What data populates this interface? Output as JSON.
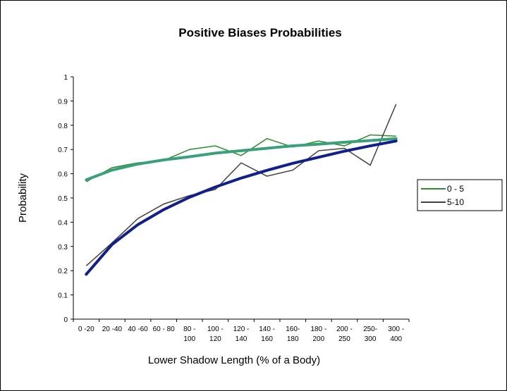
{
  "chart_data": {
    "type": "line",
    "title": "Positive Biases Probabilities",
    "xlabel": "Lower Shadow Length (% of a Body)",
    "ylabel": "Probability",
    "ylim": [
      0,
      1
    ],
    "yticks": [
      "0",
      "0.1",
      "0.2",
      "0.3",
      "0.4",
      "0.5",
      "0.6",
      "0.7",
      "0.8",
      "0.9",
      "1"
    ],
    "categories": [
      [
        "0 -20"
      ],
      [
        "20 -40"
      ],
      [
        "40 -60"
      ],
      [
        "60 - 80"
      ],
      [
        "80 -",
        "100"
      ],
      [
        "100 -",
        "120"
      ],
      [
        "120 -",
        "140"
      ],
      [
        "140 -",
        "160"
      ],
      [
        "160-",
        "180"
      ],
      [
        "180 -",
        "200"
      ],
      [
        "200 -",
        "250"
      ],
      [
        "250-",
        "300"
      ],
      [
        "300 -",
        "400"
      ]
    ],
    "series": [
      {
        "name": "0 - 5",
        "color": "#2e8b2e",
        "values": [
          0.567,
          0.625,
          0.645,
          0.655,
          0.7,
          0.715,
          0.675,
          0.745,
          0.71,
          0.735,
          0.715,
          0.76,
          0.755
        ]
      },
      {
        "name": "5-10",
        "color": "#404040",
        "values": [
          0.22,
          0.315,
          0.415,
          0.475,
          0.51,
          0.535,
          0.645,
          0.59,
          0.615,
          0.695,
          0.705,
          0.635,
          0.887
        ]
      }
    ],
    "trendlines": [
      {
        "type": "logarithmic",
        "color": "#3aa07c",
        "values": [
          0.575,
          0.615,
          0.64,
          0.657,
          0.67,
          0.685,
          0.695,
          0.705,
          0.715,
          0.722,
          0.73,
          0.737,
          0.745
        ]
      },
      {
        "type": "logarithmic",
        "color": "#101f8a",
        "values": [
          0.185,
          0.308,
          0.39,
          0.452,
          0.503,
          0.545,
          0.582,
          0.614,
          0.643,
          0.668,
          0.693,
          0.715,
          0.735
        ]
      }
    ],
    "grid": false,
    "legend": "right"
  }
}
